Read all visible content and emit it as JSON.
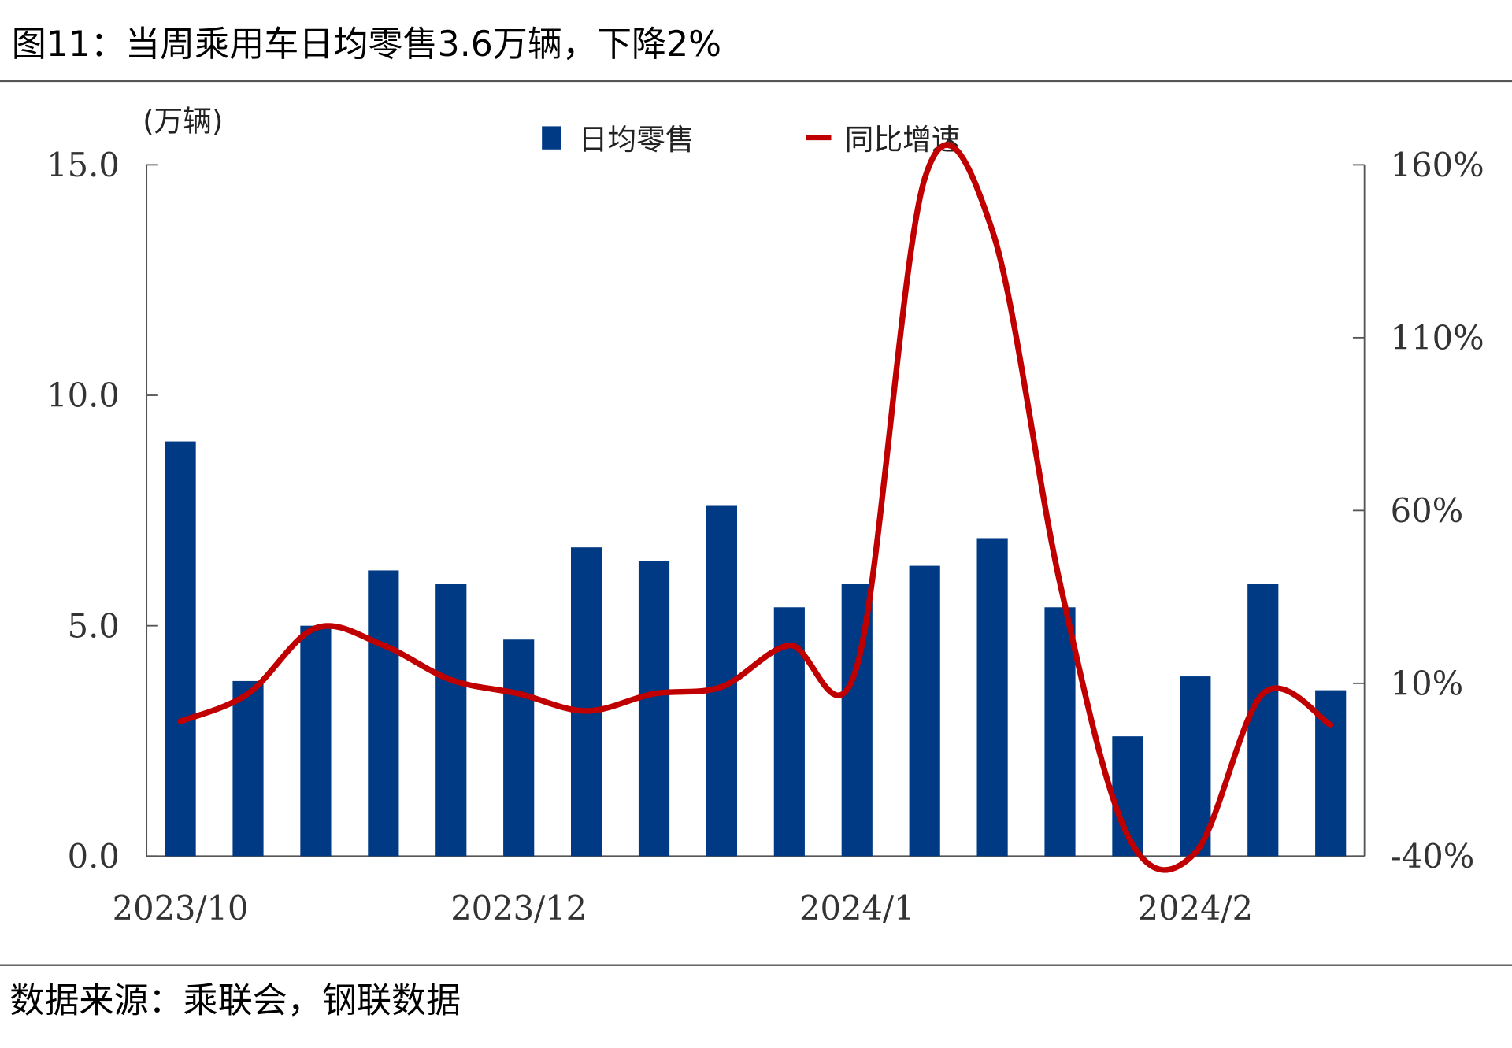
{
  "title": "图11：当周乘用车日均零售3.6万辆，下降2%",
  "source": "数据来源：乘联会，钢联数据",
  "colors": {
    "bar": "#003A85",
    "line": "#C00000",
    "rule": "#555555"
  },
  "chart_data": {
    "type": "bar+line",
    "unit_label": "(万辆)",
    "x_tick_labels": [
      "2023/10",
      "2023/12",
      "2024/1",
      "2024/2"
    ],
    "x_tick_label_positions": [
      0,
      5,
      10,
      15
    ],
    "left_axis": {
      "range": [
        0,
        15
      ],
      "ticks": [
        0,
        5,
        10,
        15
      ],
      "tick_labels": [
        "0.0",
        "5.0",
        "10.0",
        "15.0"
      ]
    },
    "right_axis": {
      "range": [
        -40,
        160
      ],
      "ticks": [
        -40,
        10,
        60,
        110,
        160
      ],
      "tick_labels": [
        "-40%",
        "10%",
        "60%",
        "110%",
        "160%"
      ]
    },
    "legend_placement": "top-center",
    "series": [
      {
        "name": "日均零售",
        "type": "bar",
        "axis": "left",
        "values": [
          9.0,
          3.8,
          5.0,
          6.2,
          5.9,
          4.7,
          6.7,
          6.4,
          7.6,
          5.4,
          5.9,
          6.3,
          6.9,
          5.4,
          2.6,
          3.9,
          5.9,
          3.6
        ]
      },
      {
        "name": "同比增速",
        "type": "line",
        "axis": "right",
        "unit": "%",
        "values": [
          -1,
          7,
          26,
          21,
          11,
          7,
          2,
          7,
          9,
          21,
          15,
          156,
          141,
          39,
          -34,
          -39,
          7,
          -2
        ]
      }
    ]
  }
}
